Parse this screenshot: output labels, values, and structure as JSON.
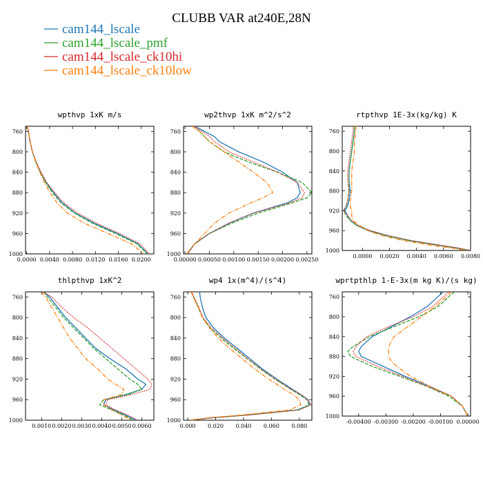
{
  "figure": {
    "title": "CLUBB VAR at240E,28N",
    "legend": [
      {
        "label": "cam144_lscale",
        "color": "#1f77b4",
        "dash": "solid"
      },
      {
        "label": "cam144_lscale_pmf",
        "color": "#2ca02c",
        "dash": "dashed"
      },
      {
        "label": "cam144_lscale_ck10hi",
        "color": "#d62728",
        "dash": "dotted"
      },
      {
        "label": "cam144_lscale_ck10low",
        "color": "#ff7f0e",
        "dash": "dashdot"
      }
    ]
  },
  "chart_data": [
    {
      "type": "line",
      "title": "wpthvp  1xK m/s",
      "xlim": [
        -0.0002,
        0.0222
      ],
      "ylim": [
        1000,
        750
      ],
      "xticks": [
        0.0,
        0.004,
        0.008,
        0.012,
        0.016,
        0.02
      ],
      "xtick_labels": [
        "0.0000",
        "0.0040",
        "0.0080",
        "0.0120",
        "0.0160",
        "0.0200"
      ],
      "yticks": [
        760,
        800,
        840,
        880,
        920,
        960,
        1000
      ],
      "y": [
        750,
        760,
        780,
        800,
        820,
        840,
        860,
        880,
        900,
        920,
        940,
        960,
        980,
        1000
      ],
      "series": [
        {
          "name": "cam144_lscale",
          "values": [
            0.0001,
            0.0003,
            0.0006,
            0.001,
            0.0016,
            0.0024,
            0.0034,
            0.0047,
            0.0062,
            0.0085,
            0.0118,
            0.0158,
            0.0194,
            0.0212
          ]
        },
        {
          "name": "cam144_lscale_pmf",
          "values": [
            0.0001,
            0.0003,
            0.0006,
            0.001,
            0.0016,
            0.0024,
            0.0033,
            0.0045,
            0.006,
            0.0083,
            0.0115,
            0.0155,
            0.0192,
            0.0211
          ]
        },
        {
          "name": "cam144_lscale_ck10hi",
          "values": [
            0.0001,
            0.0003,
            0.0006,
            0.001,
            0.0017,
            0.0025,
            0.0035,
            0.0049,
            0.0065,
            0.0089,
            0.0122,
            0.0162,
            0.0198,
            0.0214
          ]
        },
        {
          "name": "cam144_lscale_ck10low",
          "values": [
            0.0001,
            0.0003,
            0.0006,
            0.001,
            0.0016,
            0.0023,
            0.0031,
            0.0041,
            0.0053,
            0.0071,
            0.0101,
            0.0142,
            0.0183,
            0.0204
          ]
        }
      ]
    },
    {
      "type": "line",
      "title": "wp2thvp  1xK m^2/s^2",
      "xlim": [
        -3e-05,
        0.0026
      ],
      "ylim": [
        1000,
        750
      ],
      "xticks": [
        0.0,
        0.0005,
        0.001,
        0.0015,
        0.002,
        0.0025
      ],
      "xtick_labels": [
        "0.00000",
        "0.00050",
        "0.00100",
        "0.00150",
        "0.00200",
        "0.00250"
      ],
      "yticks": [
        760,
        800,
        840,
        880,
        920,
        960,
        1000
      ],
      "y": [
        750,
        760,
        770,
        780,
        800,
        820,
        840,
        860,
        880,
        890,
        900,
        920,
        940,
        960,
        980,
        1000
      ],
      "series": [
        {
          "name": "cam144_lscale",
          "values": [
            0.0002,
            0.0004,
            0.0006,
            0.0007,
            0.0011,
            0.0016,
            0.002,
            0.0023,
            0.00236,
            0.0023,
            0.0021,
            0.0014,
            0.0009,
            0.0005,
            0.0002,
            5e-05
          ]
        },
        {
          "name": "cam144_lscale_pmf",
          "values": [
            0.00015,
            0.0003,
            0.0004,
            0.0005,
            0.0008,
            0.0013,
            0.0019,
            0.0024,
            0.0026,
            0.0025,
            0.0022,
            0.0015,
            0.00095,
            0.0005,
            0.0002,
            4e-05
          ]
        },
        {
          "name": "cam144_lscale_ck10hi",
          "values": [
            0.00018,
            0.00035,
            0.0005,
            0.0006,
            0.0009,
            0.0014,
            0.0019,
            0.0023,
            0.00245,
            0.0024,
            0.00215,
            0.0014,
            0.0009,
            0.0005,
            0.0002,
            5e-05
          ]
        },
        {
          "name": "cam144_lscale_ck10low",
          "values": [
            0.00015,
            0.0003,
            0.0004,
            0.0005,
            0.0008,
            0.0011,
            0.0014,
            0.00168,
            0.0018,
            0.0016,
            0.00135,
            0.0009,
            0.0006,
            0.0004,
            0.0002,
            3e-05
          ]
        }
      ]
    },
    {
      "type": "line",
      "title": "rtpthvp  1E-3x(kg/kg) K",
      "xlim": [
        -0.0015,
        0.008
      ],
      "ylim": [
        1000,
        750
      ],
      "xticks": [
        0.0,
        0.002,
        0.004,
        0.006,
        0.008
      ],
      "xtick_labels": [
        "0.0000",
        "0.0020",
        "0.0040",
        "0.0060",
        "0.0080"
      ],
      "yticks": [
        760,
        800,
        840,
        880,
        920,
        960,
        1000
      ],
      "y": [
        750,
        760,
        780,
        800,
        820,
        840,
        860,
        880,
        900,
        910,
        920,
        930,
        940,
        950,
        960,
        970,
        980,
        990,
        995,
        1000
      ],
      "series": [
        {
          "name": "cam144_lscale",
          "values": [
            -0.0006,
            -0.0006,
            -0.0007,
            -0.0008,
            -0.0009,
            -0.001,
            -0.001,
            -0.0009,
            -0.001,
            -0.0011,
            -0.0013,
            -0.0011,
            -0.0009,
            -0.0004,
            0.0005,
            0.0018,
            0.0035,
            0.0058,
            0.007,
            0.0079
          ]
        },
        {
          "name": "cam144_lscale_pmf",
          "values": [
            -0.0006,
            -0.0006,
            -0.0007,
            -0.0008,
            -0.0009,
            -0.001,
            -0.001,
            -0.001,
            -0.0011,
            -0.0012,
            -0.0014,
            -0.0012,
            -0.0009,
            -0.0004,
            0.0004,
            0.0017,
            0.0034,
            0.0057,
            0.0069,
            0.0078
          ]
        },
        {
          "name": "cam144_lscale_ck10hi",
          "values": [
            -0.0007,
            -0.0007,
            -0.0008,
            -0.0009,
            -0.001,
            -0.0011,
            -0.0011,
            -0.001,
            -0.0011,
            -0.0012,
            -0.0014,
            -0.0011,
            -0.0008,
            -0.0003,
            0.0006,
            0.0019,
            0.0036,
            0.0059,
            0.0071,
            0.008
          ]
        },
        {
          "name": "cam144_lscale_ck10low",
          "values": [
            -0.0005,
            -0.0005,
            -0.0006,
            -0.0006,
            -0.0007,
            -0.0008,
            -0.0008,
            -0.0008,
            -0.0009,
            -0.0009,
            -0.0008,
            -0.0008,
            -0.0007,
            -0.0002,
            0.0004,
            0.0014,
            0.003,
            0.0052,
            0.0066,
            0.0076
          ]
        }
      ]
    },
    {
      "type": "line",
      "title": "thlpthvp  1xK^2",
      "xlim": [
        0.0002,
        0.0066
      ],
      "ylim": [
        1000,
        750
      ],
      "xticks": [
        0.001,
        0.002,
        0.003,
        0.004,
        0.005,
        0.006
      ],
      "xtick_labels": [
        "0.0010",
        "0.0020",
        "0.0030",
        "0.0040",
        "0.0050",
        "0.0060"
      ],
      "yticks": [
        760,
        800,
        840,
        880,
        920,
        960,
        1000
      ],
      "y": [
        750,
        760,
        780,
        800,
        820,
        840,
        860,
        880,
        900,
        920,
        930,
        940,
        950,
        960,
        970,
        980,
        990,
        1000
      ],
      "series": [
        {
          "name": "cam144_lscale",
          "values": [
            0.0011,
            0.0014,
            0.0018,
            0.0022,
            0.0027,
            0.0032,
            0.0037,
            0.0044,
            0.0052,
            0.0058,
            0.0062,
            0.006,
            0.0052,
            0.0042,
            0.0041,
            0.0046,
            0.0052,
            0.0057
          ]
        },
        {
          "name": "cam144_lscale_pmf",
          "values": [
            0.0011,
            0.0013,
            0.0017,
            0.0021,
            0.0026,
            0.0031,
            0.0036,
            0.0042,
            0.0048,
            0.0054,
            0.0058,
            0.006,
            0.0053,
            0.0041,
            0.0039,
            0.0045,
            0.0051,
            0.0056
          ]
        },
        {
          "name": "cam144_lscale_ck10hi",
          "values": [
            0.0011,
            0.0015,
            0.002,
            0.0026,
            0.0033,
            0.0039,
            0.0045,
            0.0051,
            0.0057,
            0.0063,
            0.0065,
            0.0064,
            0.0055,
            0.0043,
            0.0042,
            0.0047,
            0.0053,
            0.0058
          ]
        },
        {
          "name": "cam144_lscale_ck10low",
          "values": [
            0.001,
            0.0012,
            0.0015,
            0.0018,
            0.0021,
            0.0024,
            0.0028,
            0.0032,
            0.0038,
            0.0043,
            0.0047,
            0.0051,
            0.005,
            0.0041,
            0.0041,
            0.0045,
            0.005,
            0.0055
          ]
        }
      ]
    },
    {
      "type": "line",
      "title": "wp4  1x(m^4)/(s^4)",
      "xlim": [
        -0.003,
        0.089
      ],
      "ylim": [
        1000,
        750
      ],
      "xticks": [
        0.0,
        0.02,
        0.04,
        0.06,
        0.08
      ],
      "xtick_labels": [
        "0.000",
        "0.020",
        "0.040",
        "0.060",
        "0.080"
      ],
      "yticks": [
        760,
        800,
        840,
        880,
        920,
        960,
        1000
      ],
      "y": [
        750,
        760,
        780,
        800,
        820,
        840,
        860,
        880,
        900,
        920,
        940,
        950,
        960,
        970,
        980,
        990,
        995,
        1000
      ],
      "series": [
        {
          "name": "cam144_lscale",
          "values": [
            0.0085,
            0.0089,
            0.0105,
            0.013,
            0.0185,
            0.0262,
            0.0355,
            0.0445,
            0.0535,
            0.064,
            0.0752,
            0.081,
            0.0862,
            0.0875,
            0.0785,
            0.042,
            0.018,
            0.002
          ]
        },
        {
          "name": "cam144_lscale_pmf",
          "values": [
            0.0025,
            0.004,
            0.0075,
            0.0105,
            0.016,
            0.024,
            0.033,
            0.0425,
            0.052,
            0.0625,
            0.074,
            0.08,
            0.0855,
            0.087,
            0.079,
            0.042,
            0.018,
            0.002
          ]
        },
        {
          "name": "cam144_lscale_ck10hi",
          "values": [
            0.003,
            0.0045,
            0.008,
            0.011,
            0.017,
            0.025,
            0.034,
            0.043,
            0.0525,
            0.063,
            0.0745,
            0.081,
            0.086,
            0.0885,
            0.08,
            0.043,
            0.018,
            0.002
          ]
        },
        {
          "name": "cam144_lscale_ck10low",
          "values": [
            0.0025,
            0.004,
            0.0075,
            0.0105,
            0.0155,
            0.022,
            0.03,
            0.039,
            0.048,
            0.058,
            0.0695,
            0.0755,
            0.08,
            0.081,
            0.073,
            0.038,
            0.016,
            0.002
          ]
        }
      ]
    },
    {
      "type": "line",
      "title": "wprtpthlp  1-E-3x(m kg K)/(s kg)",
      "xlim": [
        -0.0046,
        0.0001
      ],
      "ylim": [
        1000,
        750
      ],
      "xticks": [
        -0.004,
        -0.003,
        -0.002,
        -0.001,
        0.0
      ],
      "xtick_labels": [
        "-0.00400",
        "-0.00300",
        "-0.00200",
        "-0.00100",
        "0.00000"
      ],
      "yticks": [
        760,
        800,
        840,
        880,
        920,
        960,
        1000
      ],
      "y": [
        750,
        760,
        780,
        800,
        820,
        840,
        860,
        870,
        880,
        890,
        900,
        920,
        940,
        960,
        980,
        990,
        1000
      ],
      "series": [
        {
          "name": "cam144_lscale",
          "values": [
            -0.0009,
            -0.0011,
            -0.0015,
            -0.0021,
            -0.0028,
            -0.0035,
            -0.0039,
            -0.004,
            -0.0039,
            -0.0035,
            -0.0031,
            -0.0023,
            -0.0014,
            -0.0006,
            -0.0002,
            -0.0001,
            0.0
          ]
        },
        {
          "name": "cam144_lscale_pmf",
          "values": [
            -0.0005,
            -0.0007,
            -0.0011,
            -0.0018,
            -0.0027,
            -0.0036,
            -0.0042,
            -0.0044,
            -0.0043,
            -0.0039,
            -0.0035,
            -0.0025,
            -0.0015,
            -0.0007,
            -0.0002,
            -0.0001,
            0.0
          ]
        },
        {
          "name": "cam144_lscale_ck10hi",
          "values": [
            -0.0007,
            -0.0009,
            -0.0013,
            -0.002,
            -0.0029,
            -0.0037,
            -0.0041,
            -0.0042,
            -0.0041,
            -0.0037,
            -0.0033,
            -0.0024,
            -0.0015,
            -0.0006,
            -0.0002,
            -0.0001,
            0.0
          ]
        },
        {
          "name": "cam144_lscale_ck10low",
          "values": [
            -0.0006,
            -0.0008,
            -0.0012,
            -0.0017,
            -0.0022,
            -0.0027,
            -0.0029,
            -0.0029,
            -0.0029,
            -0.0028,
            -0.0026,
            -0.0021,
            -0.0014,
            -0.0006,
            -0.0002,
            -0.0001,
            0.0
          ]
        }
      ]
    }
  ]
}
